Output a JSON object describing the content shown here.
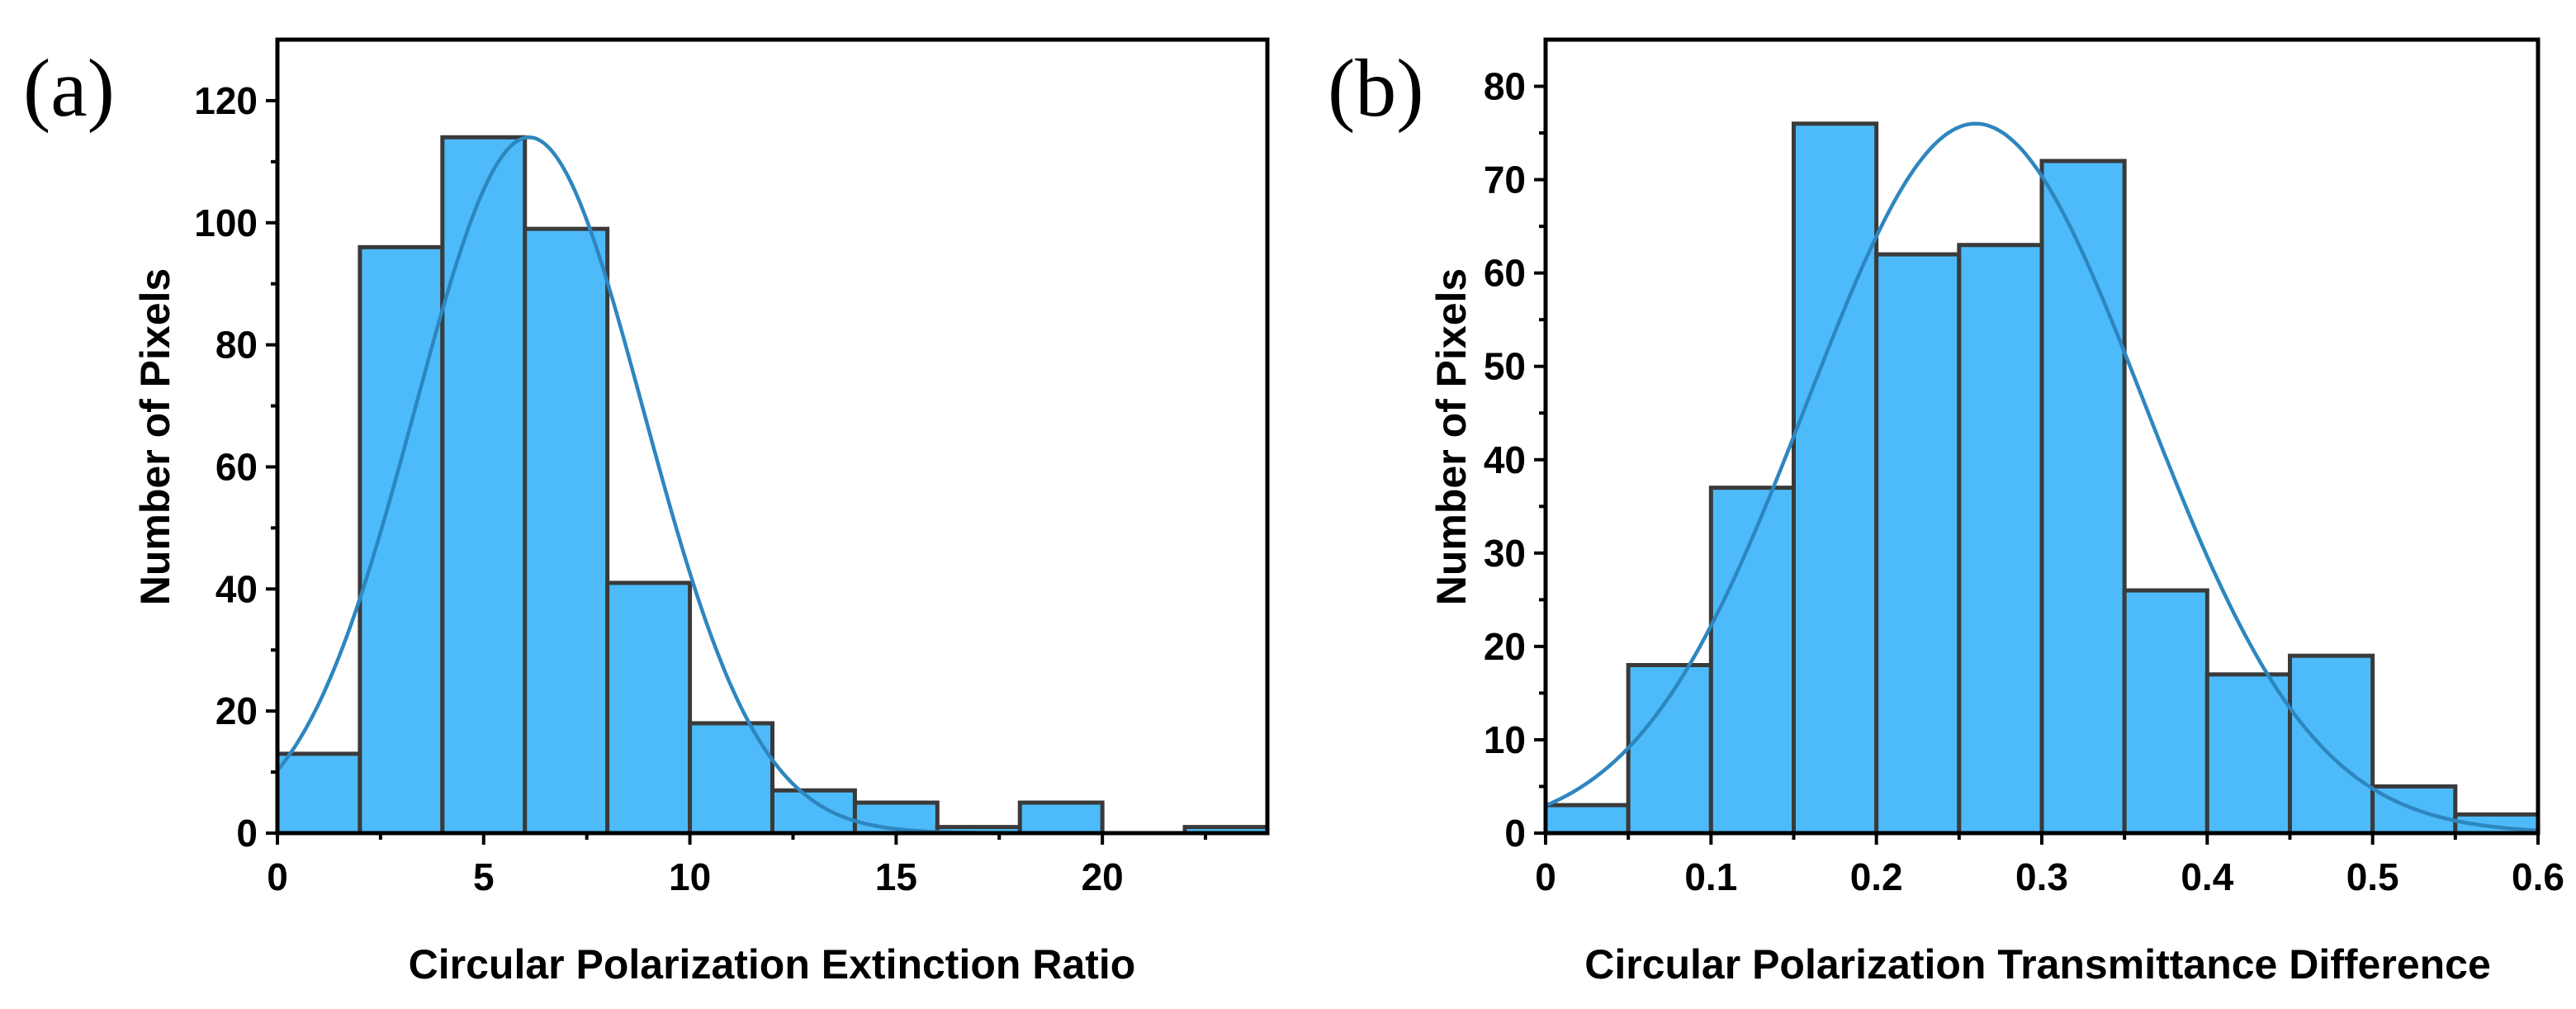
{
  "figure": {
    "background": "#ffffff"
  },
  "colors": {
    "bar_fill": "#4dbbfa",
    "bar_edge": "#3a3a3a",
    "fit_line": "#2e86bf"
  },
  "chart_data": [
    {
      "type": "bar",
      "subtype": "histogram with gaussian fit",
      "panel_label": "(a)",
      "xlabel": "Circular Polarization Extinction Ratio",
      "ylabel": "Number of Pixels",
      "xlim": [
        0,
        24
      ],
      "ylim": [
        0,
        130
      ],
      "xticks": [
        0,
        5,
        10,
        15,
        20
      ],
      "xtick_labels": [
        "0",
        "5",
        "10",
        "15",
        "20"
      ],
      "yticks": [
        0,
        20,
        40,
        60,
        80,
        100,
        120
      ],
      "ytick_labels": [
        "0",
        "20",
        "40",
        "60",
        "80",
        "100",
        "120"
      ],
      "bins": [
        {
          "start": 0,
          "end": 2,
          "count": 13
        },
        {
          "start": 2,
          "end": 4,
          "count": 96
        },
        {
          "start": 4,
          "end": 6,
          "count": 114
        },
        {
          "start": 6,
          "end": 8,
          "count": 99
        },
        {
          "start": 8,
          "end": 10,
          "count": 41
        },
        {
          "start": 10,
          "end": 12,
          "count": 18
        },
        {
          "start": 12,
          "end": 14,
          "count": 7
        },
        {
          "start": 14,
          "end": 16,
          "count": 5
        },
        {
          "start": 16,
          "end": 18,
          "count": 1
        },
        {
          "start": 18,
          "end": 20,
          "count": 5
        },
        {
          "start": 20,
          "end": 22,
          "count": 0
        },
        {
          "start": 22,
          "end": 24,
          "count": 1
        }
      ],
      "fit": {
        "type": "gaussian",
        "amplitude": 114,
        "mean": 6.1,
        "sigma": 2.78
      }
    },
    {
      "type": "bar",
      "subtype": "histogram with gaussian fit",
      "panel_label": "(b)",
      "xlabel": "Circular Polarization Transmittance Difference",
      "ylabel": "Number of Pixels",
      "xlim": [
        0,
        0.6
      ],
      "ylim": [
        0,
        85
      ],
      "xticks": [
        0,
        0.1,
        0.2,
        0.3,
        0.4,
        0.5,
        0.6
      ],
      "xtick_labels": [
        "0",
        "0.1",
        "0.2",
        "0.3",
        "0.4",
        "0.5",
        "0.6"
      ],
      "yticks": [
        0,
        10,
        20,
        30,
        40,
        50,
        60,
        70,
        80
      ],
      "ytick_labels": [
        "0",
        "10",
        "20",
        "30",
        "40",
        "50",
        "60",
        "70",
        "80"
      ],
      "bins": [
        {
          "start": 0.0,
          "end": 0.05,
          "count": 3
        },
        {
          "start": 0.05,
          "end": 0.1,
          "count": 18
        },
        {
          "start": 0.1,
          "end": 0.15,
          "count": 37
        },
        {
          "start": 0.15,
          "end": 0.2,
          "count": 76
        },
        {
          "start": 0.2,
          "end": 0.25,
          "count": 62
        },
        {
          "start": 0.25,
          "end": 0.3,
          "count": 63
        },
        {
          "start": 0.3,
          "end": 0.35,
          "count": 72
        },
        {
          "start": 0.35,
          "end": 0.4,
          "count": 26
        },
        {
          "start": 0.4,
          "end": 0.45,
          "count": 17
        },
        {
          "start": 0.45,
          "end": 0.5,
          "count": 19
        },
        {
          "start": 0.5,
          "end": 0.55,
          "count": 5
        },
        {
          "start": 0.55,
          "end": 0.6,
          "count": 2
        }
      ],
      "fit": {
        "type": "gaussian",
        "amplitude": 76,
        "mean": 0.26,
        "sigma": 0.102
      }
    }
  ]
}
